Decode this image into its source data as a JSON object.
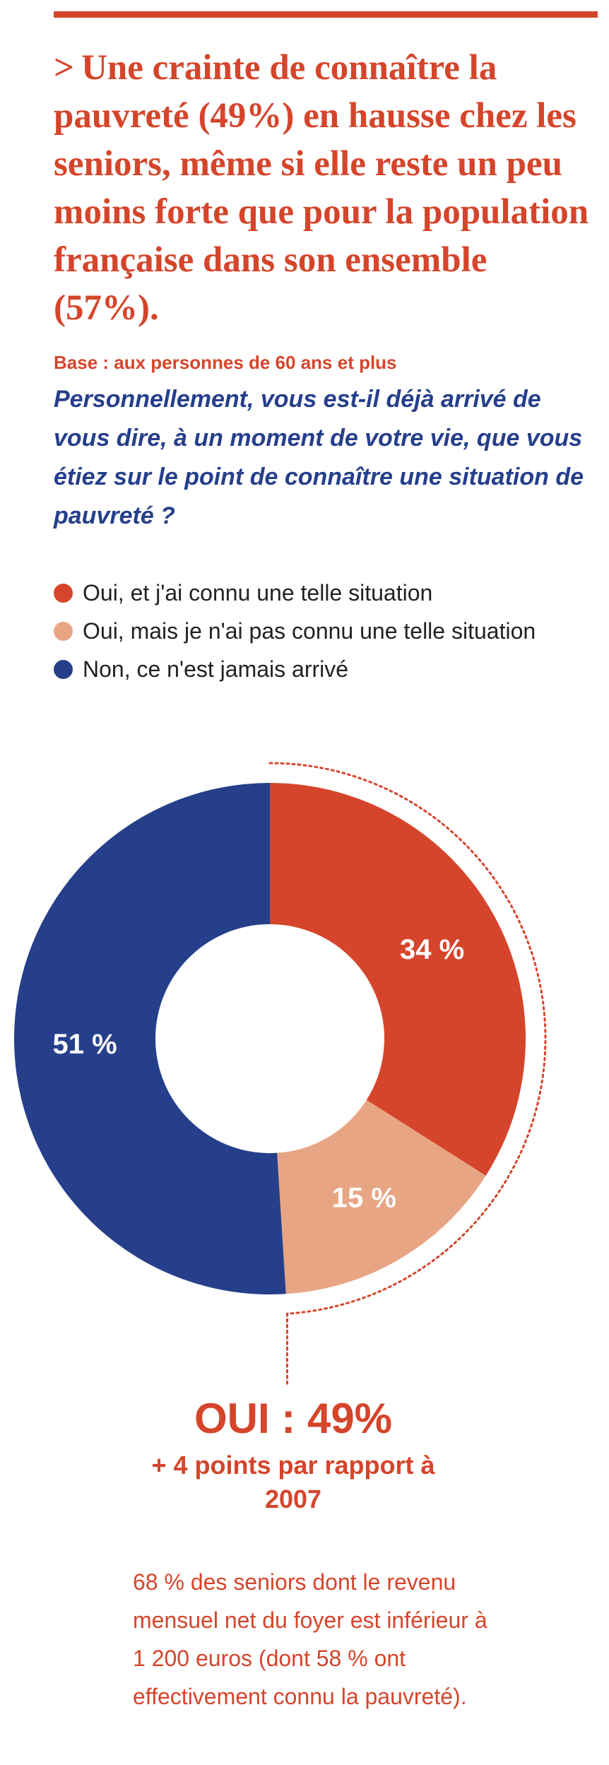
{
  "headline": {
    "chevron": ">",
    "text": "Une crainte de connaître la pauvreté (49%) en hausse chez les seniors, même si elle reste un peu moins forte que pour la population française dans son ensemble (57%)."
  },
  "base_note": "Base : aux personnes de 60 ans et plus",
  "question": "Personnellement, vous est-il déjà arrivé de vous dire, à un moment de votre vie, que vous étiez sur le point de connaître une situation de pauvreté ?",
  "legend": [
    {
      "label": "Oui, et j'ai connu une telle situation",
      "color": "#d5452b"
    },
    {
      "label": "Oui, mais je n'ai pas connu une telle situation",
      "color": "#e8a583"
    },
    {
      "label": "Non, ce n'est jamais arrivé",
      "color": "#263f8b"
    }
  ],
  "chart_data": {
    "type": "pie",
    "variant": "donut",
    "categories": [
      "Oui, et j'ai connu une telle situation",
      "Oui, mais je n'ai pas connu une telle situation",
      "Non, ce n'est jamais arrivé"
    ],
    "values": [
      34,
      15,
      51
    ],
    "data_labels": [
      "34 %",
      "15 %",
      "51 %"
    ],
    "colors": [
      "#d5452b",
      "#e8a583",
      "#263f8b"
    ],
    "legend_position": "top",
    "annotation": {
      "total_label": "OUI : 49%",
      "delta_label": "+ 4 points par rapport à 2007"
    }
  },
  "footnote": "68 % des seniors dont le revenu mensuel net du foyer est inférieur à 1 200 euros (dont 58 % ont effectivement connu la pauvreté)."
}
